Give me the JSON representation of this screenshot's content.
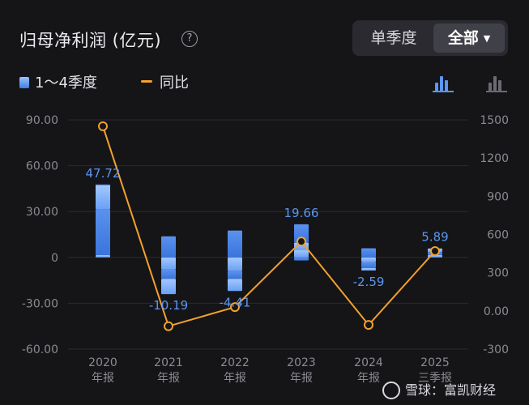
{
  "header": {
    "title": "归母净利润 (亿元)",
    "help_icon": "question-circle-icon",
    "segment_quarter": "单季度",
    "segment_all": "全部",
    "caret_icon": "caret-down-icon"
  },
  "legend": {
    "bars_label": "1～4季度",
    "yoy_label": "同比",
    "bar_chart_icon": "bar-chart-icon",
    "alt_chart_icon": "bar-chart-alt-icon"
  },
  "colors": {
    "background": "#151518",
    "bar_light": "#9cc2ff",
    "bar_dark": "#3f7ee6",
    "line": "#f2a12c",
    "label": "#5b96f0",
    "axis_text": "#8a8a92"
  },
  "chart_data": {
    "type": "bar",
    "categories": [
      "2020\n年报",
      "2021\n年报",
      "2022\n年报",
      "2023\n年报",
      "2024\n年报",
      "2025\n三季报"
    ],
    "series": [
      {
        "name": "1～4季度",
        "type": "stacked-bar",
        "quarters": [
          [
            1.5,
            30.0,
            16.0,
            0.22
          ],
          [
            -8.0,
            -6.0,
            -10.0,
            13.81
          ],
          [
            -9.0,
            -5.0,
            -8.0,
            17.59
          ],
          [
            5.0,
            -2.0,
            4.66,
            12.0
          ],
          [
            -3.0,
            -4.0,
            -1.59,
            6.0
          ],
          [
            1.5,
            2.0,
            2.39
          ]
        ],
        "values": [
          47.72,
          -10.19,
          -4.41,
          19.66,
          -2.59,
          5.89
        ],
        "data_labels": [
          "47.72",
          "-10.19",
          "-4.41",
          "19.66",
          "-2.59",
          "5.89"
        ]
      },
      {
        "name": "同比",
        "type": "line",
        "axis": "right",
        "values": [
          1450,
          -120,
          30,
          545,
          -110,
          470
        ]
      }
    ],
    "y_left": {
      "min": -60,
      "max": 90,
      "ticks": [
        "90.00",
        "60.00",
        "30.00",
        "0",
        "-30.00",
        "-60.00"
      ]
    },
    "y_right": {
      "min": -300,
      "max": 1500,
      "ticks": [
        "1500",
        "1200",
        "900",
        "600",
        "300",
        "0.00",
        "-300"
      ]
    },
    "grid": true,
    "legend_position": "top-left"
  },
  "watermark": {
    "text": "雪球：富凯财经"
  }
}
